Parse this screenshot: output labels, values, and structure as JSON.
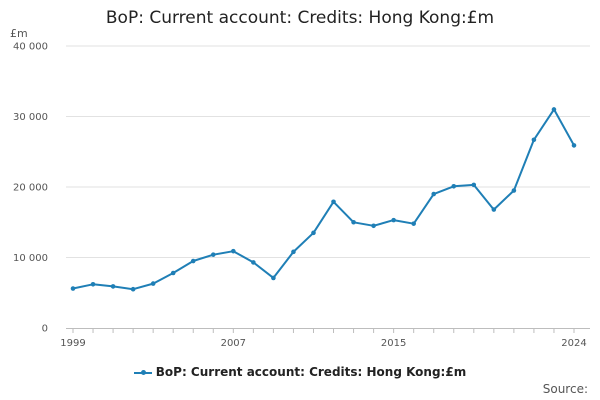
{
  "chart_data": {
    "type": "line",
    "title": "BoP: Current account: Credits: Hong Kong:£m",
    "ylabel": "£m",
    "xlabel": "",
    "x": [
      1999,
      2000,
      2001,
      2002,
      2003,
      2004,
      2005,
      2006,
      2007,
      2008,
      2009,
      2010,
      2011,
      2012,
      2013,
      2014,
      2015,
      2016,
      2017,
      2018,
      2019,
      2020,
      2021,
      2022,
      2023,
      2024
    ],
    "series": [
      {
        "name": "BoP: Current account: Credits: Hong Kong:£m",
        "color": "#1f7fb6",
        "values": [
          5600,
          6200,
          5900,
          5500,
          6300,
          7800,
          9500,
          10400,
          10900,
          9300,
          7100,
          10800,
          13500,
          17900,
          15000,
          14500,
          15300,
          14800,
          19000,
          20100,
          20300,
          16800,
          19500,
          26700,
          31000,
          25900
        ]
      }
    ],
    "xlim": [
      1999,
      2024
    ],
    "ylim": [
      0,
      40000
    ],
    "yticks": [
      0,
      10000,
      20000,
      30000,
      40000
    ],
    "ytick_labels": [
      "0",
      "10 000",
      "20 000",
      "30 000",
      "40 000"
    ],
    "xtick_labels": [
      "1999",
      "2007",
      "2015",
      "2024"
    ],
    "grid": "horizontal",
    "legend": "bottom"
  },
  "source_label": "Source:"
}
